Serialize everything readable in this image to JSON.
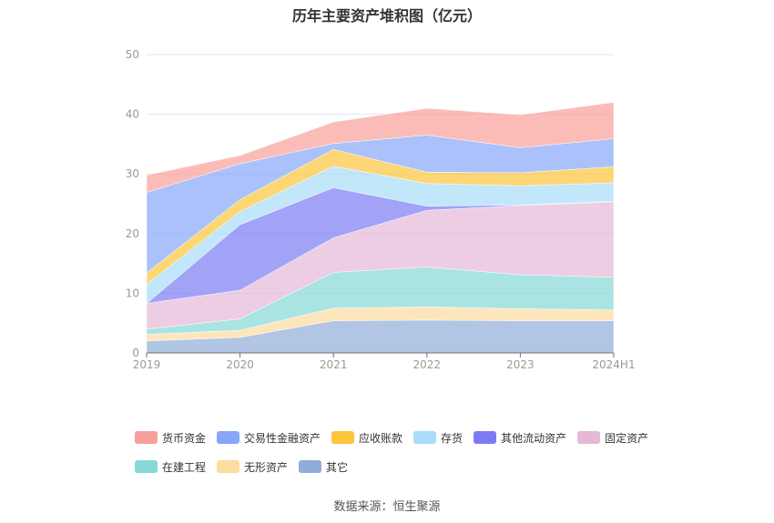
{
  "chart_data": {
    "type": "area",
    "stacked": true,
    "title": "历年主要资产堆积图（亿元）",
    "categories": [
      "2019",
      "2020",
      "2021",
      "2022",
      "2023",
      "2024H1"
    ],
    "ylim": [
      0,
      50
    ],
    "yticks": [
      0,
      10,
      20,
      30,
      40,
      50
    ],
    "grid": true,
    "legend_position": "bottom",
    "series": [
      {
        "name": "其它",
        "color": "#90acd8",
        "values": [
          2.0,
          2.6,
          5.4,
          5.5,
          5.4,
          5.4
        ]
      },
      {
        "name": "无形资产",
        "color": "#fddca0",
        "values": [
          1.1,
          1.2,
          2.1,
          2.2,
          2.0,
          1.8
        ]
      },
      {
        "name": "在建工程",
        "color": "#86d9d6",
        "values": [
          0.9,
          1.9,
          6.0,
          6.7,
          5.7,
          5.5
        ]
      },
      {
        "name": "固定资产",
        "color": "#e6b8d8",
        "values": [
          4.3,
          4.8,
          5.8,
          9.5,
          11.6,
          12.6
        ]
      },
      {
        "name": "其他流动资产",
        "color": "#7b7cf4",
        "values": [
          0.0,
          11.0,
          8.4,
          0.7,
          0.1,
          0.1
        ]
      },
      {
        "name": "存货",
        "color": "#a8dcf8",
        "values": [
          3.2,
          2.2,
          3.6,
          3.8,
          3.2,
          3.1
        ]
      },
      {
        "name": "应收账款",
        "color": "#fcc53a",
        "values": [
          1.9,
          2.0,
          2.8,
          1.9,
          2.2,
          2.7
        ]
      },
      {
        "name": "交易性金融资产",
        "color": "#86a6fa",
        "values": [
          13.5,
          6.0,
          1.0,
          6.2,
          4.2,
          4.7
        ]
      },
      {
        "name": "货币资金",
        "color": "#f9a09a",
        "values": [
          2.9,
          1.4,
          3.6,
          4.5,
          5.5,
          6.1
        ]
      }
    ],
    "legend_order": [
      "货币资金",
      "交易性金融资产",
      "应收账款",
      "存货",
      "其他流动资产",
      "固定资产",
      "在建工程",
      "无形资产",
      "其它"
    ]
  },
  "source": "数据来源：恒生聚源"
}
